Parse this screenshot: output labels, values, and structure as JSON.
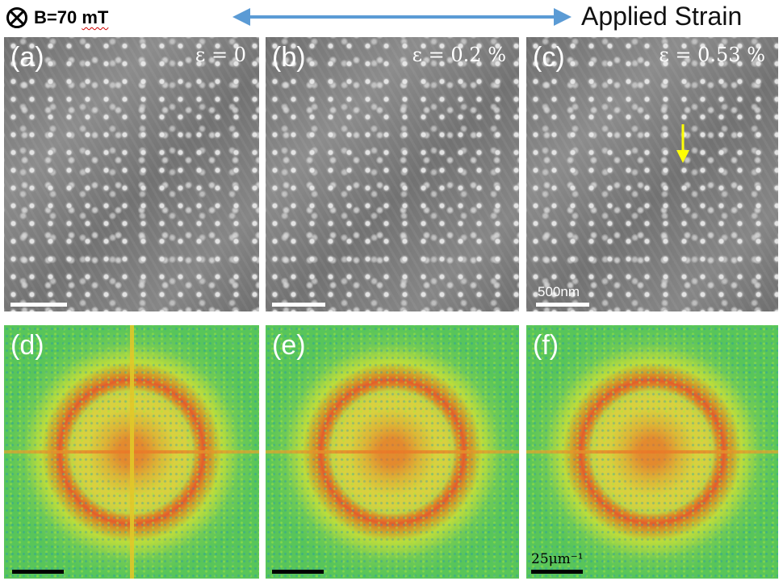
{
  "header": {
    "field_prefix": "B=70 ",
    "field_unit": "mT",
    "strain_label": "Applied Strain",
    "arrow_color": "#5b9bd5"
  },
  "panels": {
    "a": {
      "label": "(a)",
      "strain": "ε = 0"
    },
    "b": {
      "label": "(b)",
      "strain": "ε = 0.2 %"
    },
    "c": {
      "label": "(c)",
      "strain": "ε = 0.53 %",
      "scalebar_text": "500nm",
      "marker_color": "#ffff00"
    },
    "d": {
      "label": "(d)"
    },
    "e": {
      "label": "(e)"
    },
    "f": {
      "label": "(f)",
      "scalebar_text": "25μm⁻¹"
    }
  }
}
